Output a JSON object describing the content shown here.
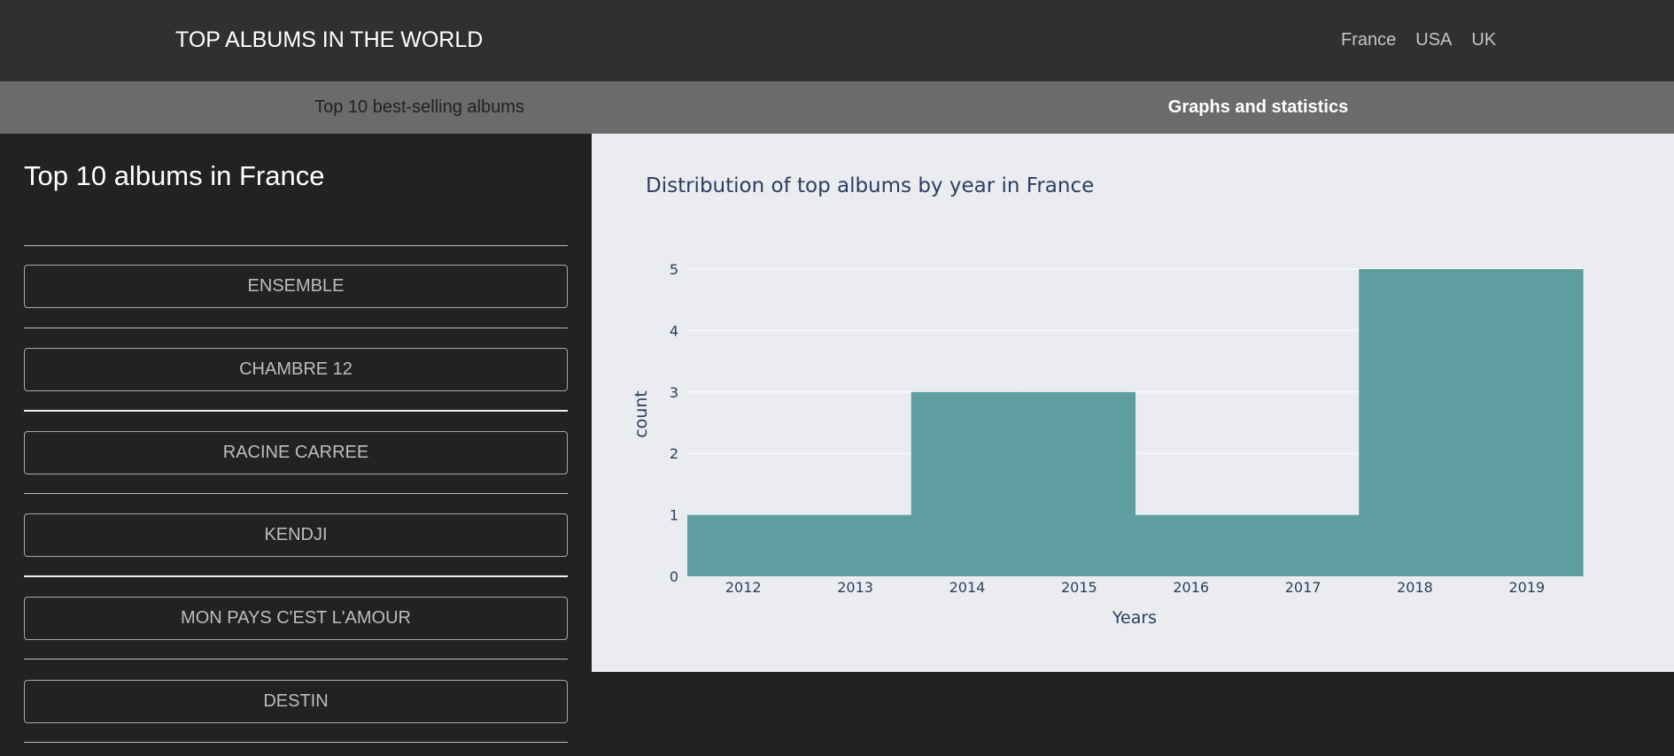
{
  "header": {
    "title": "TOP ALBUMS IN THE WORLD",
    "nav": [
      "France",
      "USA",
      "UK"
    ]
  },
  "tabs": [
    {
      "label": "Top 10 best-selling albums",
      "active": false
    },
    {
      "label": "Graphs and statistics",
      "active": true
    }
  ],
  "sidebar": {
    "title": "Top 10 albums in France",
    "albums": [
      "ENSEMBLE",
      "CHAMBRE 12",
      "RACINE CARREE",
      "KENDJI",
      "MON PAYS C'EST L'AMOUR",
      "DESTIN"
    ]
  },
  "colors": {
    "navbar": "#303030",
    "tabs": "#6b6b6b",
    "background": "#222222",
    "plot_bg": "#ebecf0",
    "bar": "#5f9ea0"
  },
  "chart_data": {
    "type": "bar",
    "title": "Distribution of top albums by year in France",
    "xlabel": "Years",
    "ylabel": "count",
    "categories": [
      "2012",
      "2013",
      "2014",
      "2015",
      "2016",
      "2017",
      "2018",
      "2019"
    ],
    "values": [
      1,
      1,
      3,
      3,
      1,
      1,
      5,
      5
    ],
    "yticks": [
      0,
      1,
      2,
      3,
      4,
      5
    ],
    "ylim": [
      0,
      5
    ],
    "grid": true
  }
}
